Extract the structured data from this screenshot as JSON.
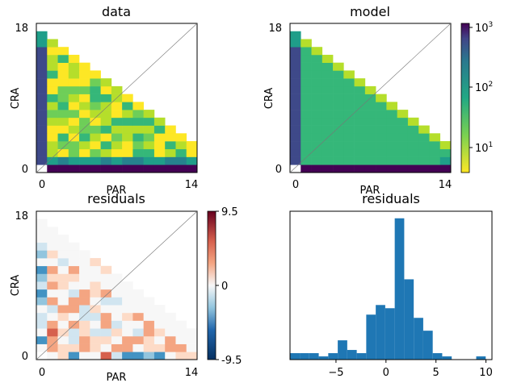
{
  "chart_data": [
    {
      "type": "heatmap",
      "title": "data",
      "xlabel": "PAR",
      "ylabel": "CRA",
      "x_ticks": [
        "0",
        "14"
      ],
      "y_ticks": [
        "18",
        "0"
      ],
      "scale": "log",
      "colormap": "viridis_r",
      "diagonal_line": true
    },
    {
      "type": "heatmap",
      "title": "model",
      "xlabel": "PAR",
      "ylabel": "CRA",
      "x_ticks": [
        "0",
        "14"
      ],
      "y_ticks": [
        "18",
        "0"
      ],
      "scale": "log",
      "colormap": "viridis_r",
      "diagonal_line": true,
      "colorbar": {
        "ticks": [
          "10^3",
          "10^2",
          "10^1"
        ],
        "range": [
          4,
          1200
        ]
      }
    },
    {
      "type": "heatmap",
      "title": "residuals",
      "xlabel": "PAR",
      "ylabel": "CRA",
      "x_ticks": [
        "0",
        "14"
      ],
      "y_ticks": [
        "18",
        "0"
      ],
      "colormap": "RdBu_r",
      "diagonal_line": true,
      "colorbar": {
        "ticks": [
          "9.5",
          "0",
          "-9.5"
        ],
        "range": [
          -9.5,
          9.5
        ]
      }
    },
    {
      "type": "bar",
      "title": "residuals",
      "x_ticks": [
        "−5",
        "0",
        "5",
        "10"
      ],
      "xlim": [
        -9.6,
        10.6
      ],
      "bin_width": 0.95,
      "bins": [
        {
          "x": -9.1,
          "count": 2
        },
        {
          "x": -8.15,
          "count": 2
        },
        {
          "x": -7.2,
          "count": 2
        },
        {
          "x": -6.25,
          "count": 1
        },
        {
          "x": -5.3,
          "count": 2
        },
        {
          "x": -4.35,
          "count": 6
        },
        {
          "x": -3.4,
          "count": 3
        },
        {
          "x": -2.45,
          "count": 2
        },
        {
          "x": -1.5,
          "count": 14
        },
        {
          "x": -0.55,
          "count": 17
        },
        {
          "x": 0.4,
          "count": 16
        },
        {
          "x": 1.35,
          "count": 44
        },
        {
          "x": 2.3,
          "count": 25
        },
        {
          "x": 3.25,
          "count": 13
        },
        {
          "x": 4.2,
          "count": 9
        },
        {
          "x": 5.15,
          "count": 2
        },
        {
          "x": 6.1,
          "count": 1
        },
        {
          "x": 9.5,
          "count": 1
        }
      ]
    }
  ]
}
